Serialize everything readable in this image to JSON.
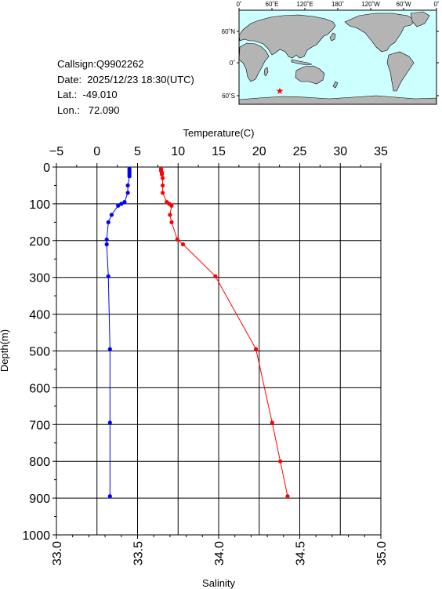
{
  "info": {
    "callsign": "Callsign:Q9902262",
    "date": "Date:  2025/12/23 18:30(UTC)",
    "lat": "Lat.:  -49.010",
    "lon": "Lon.:   72.090"
  },
  "map": {
    "lon_labels": [
      "0˚",
      "60˚E",
      "120˚E",
      "180˚",
      "120˚W",
      "60˚W",
      "0˚"
    ],
    "lat_labels": [
      "60˚N",
      "0˚",
      "60˚S"
    ],
    "marker": {
      "lon": 72.09,
      "lat": -49.01,
      "color": "#ff0000"
    },
    "ocean_color": "#ccffff",
    "land_color": "#b4b4b4"
  },
  "chart_data": {
    "type": "line",
    "ylabel": "Depth(m)",
    "ylim": [
      1000,
      0
    ],
    "y_ticks": [
      "0",
      "100",
      "200",
      "300",
      "400",
      "500",
      "600",
      "700",
      "800",
      "900",
      "1000"
    ],
    "top_axis": {
      "label": "Temperature(C)",
      "lim": [
        -5,
        35
      ],
      "ticks": [
        "−5",
        "0",
        "5",
        "10",
        "15",
        "20",
        "25",
        "30",
        "35"
      ]
    },
    "bottom_axis": {
      "label": "Salinity",
      "lim": [
        33.0,
        35.0
      ],
      "ticks": [
        "33.0",
        "33.5",
        "34.0",
        "34.5",
        "35.0"
      ]
    },
    "grid": true,
    "series": [
      {
        "axis": "top",
        "color": "#ff0000",
        "points": [
          [
            7.9,
            5
          ],
          [
            7.9,
            10
          ],
          [
            8.0,
            15
          ],
          [
            8.0,
            20
          ],
          [
            8.1,
            30
          ],
          [
            8.1,
            50
          ],
          [
            8.1,
            70
          ],
          [
            8.6,
            95
          ],
          [
            8.9,
            100
          ],
          [
            9.2,
            105
          ],
          [
            9.0,
            130
          ],
          [
            9.2,
            150
          ],
          [
            9.9,
            197
          ],
          [
            10.6,
            210
          ],
          [
            14.6,
            297
          ],
          [
            19.6,
            495
          ],
          [
            21.6,
            695
          ],
          [
            22.6,
            800
          ],
          [
            23.5,
            895
          ]
        ]
      },
      {
        "axis": "bottom",
        "color": "#0000ff",
        "points": [
          [
            33.45,
            5
          ],
          [
            33.45,
            10
          ],
          [
            33.45,
            15
          ],
          [
            33.45,
            20
          ],
          [
            33.45,
            25
          ],
          [
            33.44,
            50
          ],
          [
            33.44,
            70
          ],
          [
            33.42,
            95
          ],
          [
            33.4,
            100
          ],
          [
            33.38,
            105
          ],
          [
            33.34,
            130
          ],
          [
            33.32,
            150
          ],
          [
            33.31,
            197
          ],
          [
            33.31,
            210
          ],
          [
            33.32,
            297
          ],
          [
            33.33,
            495
          ],
          [
            33.33,
            695
          ],
          [
            33.33,
            895
          ]
        ]
      }
    ]
  }
}
